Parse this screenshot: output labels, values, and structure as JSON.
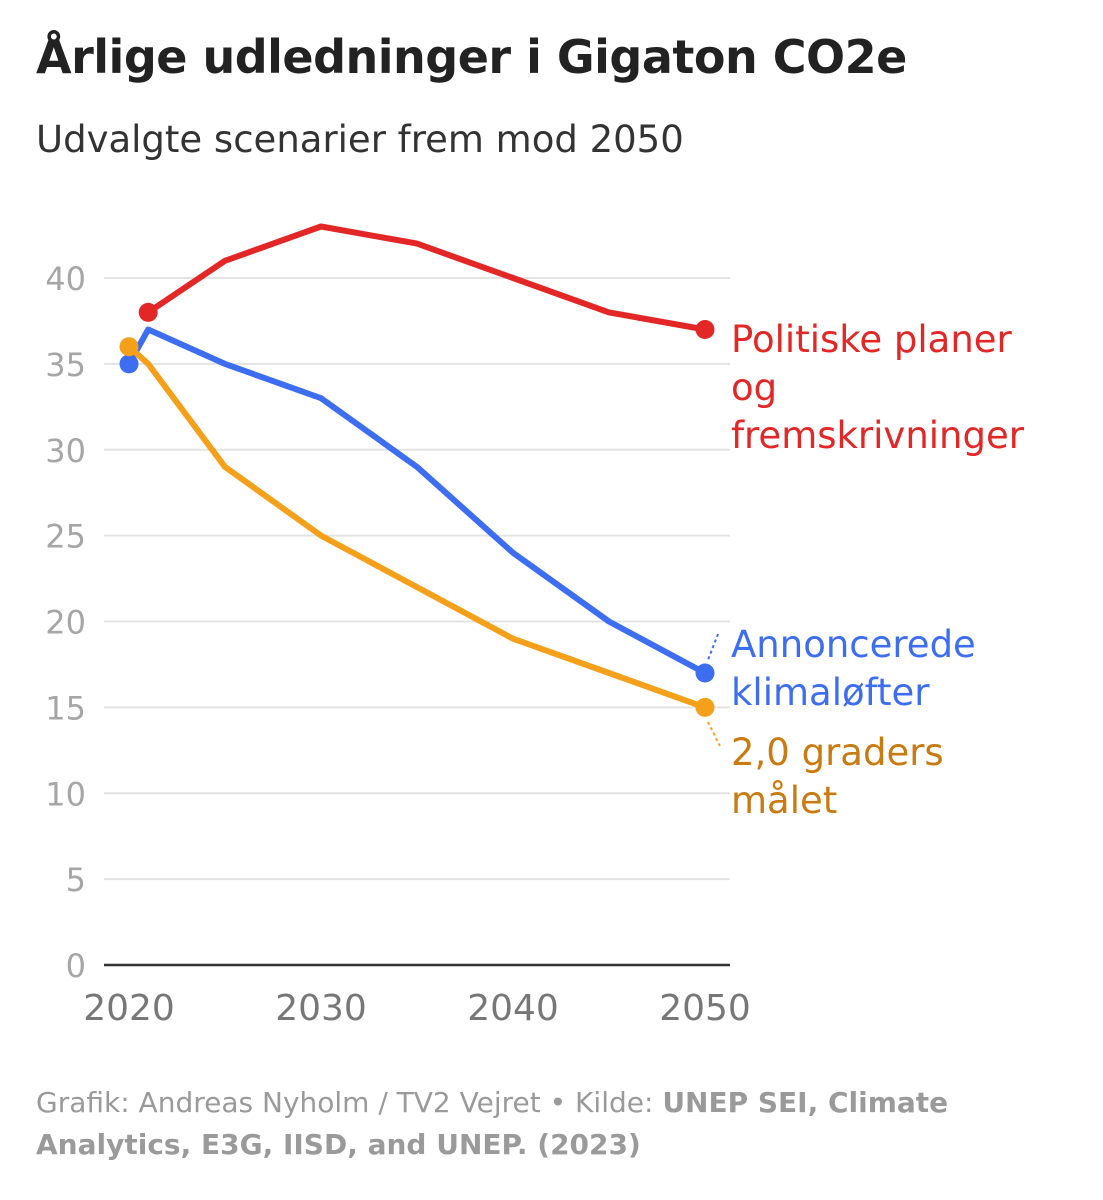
{
  "header": {
    "title": "Årlige udledninger i Gigaton CO2e",
    "subtitle": "Udvalgte scenarier frem mod 2050"
  },
  "footer": {
    "credit": "Grafik: Andreas Nyholm / TV2 Vejret • Kilde: ",
    "source_bold": "UNEP SEI, Climate Analytics, E3G, IISD, and UNEP. (2023)"
  },
  "chart_data": {
    "type": "line",
    "title": "Årlige udledninger i Gigaton CO2e",
    "subtitle": "Udvalgte scenarier frem mod 2050",
    "xlabel": "",
    "ylabel": "",
    "xlim": [
      2020,
      2050
    ],
    "ylim": [
      0,
      42
    ],
    "x_ticks": [
      2020,
      2030,
      2040,
      2050
    ],
    "y_ticks": [
      0,
      5,
      10,
      15,
      20,
      25,
      30,
      35,
      40
    ],
    "grid": true,
    "legend": "inline labels at right end of lines",
    "series": [
      {
        "name_lines": [
          "Politiske planer",
          "og",
          "fremskrivninger"
        ],
        "color": "#e32626",
        "label_color": "#e32626",
        "points": [
          [
            2021,
            38
          ],
          [
            2025,
            41
          ],
          [
            2030,
            43
          ],
          [
            2035,
            42
          ],
          [
            2040,
            40
          ],
          [
            2045,
            38
          ],
          [
            2050,
            37
          ]
        ],
        "marker_start": [
          2021,
          38
        ],
        "marker_end": [
          2050,
          37
        ]
      },
      {
        "name_lines": [
          "Annoncerede",
          "klimaløfter"
        ],
        "color": "#3d6ef2",
        "label_color": "#3d6ef2",
        "points": [
          [
            2020,
            35
          ],
          [
            2021,
            37
          ],
          [
            2025,
            35
          ],
          [
            2030,
            33
          ],
          [
            2035,
            29
          ],
          [
            2040,
            24
          ],
          [
            2045,
            20
          ],
          [
            2050,
            17
          ]
        ],
        "marker_start": [
          2020,
          35
        ],
        "marker_end": [
          2050,
          17
        ]
      },
      {
        "name_lines": [
          "2,0 graders",
          "målet"
        ],
        "color": "#f5a01a",
        "label_color": "#c97a10",
        "points": [
          [
            2020,
            36
          ],
          [
            2021,
            35
          ],
          [
            2025,
            29
          ],
          [
            2030,
            25
          ],
          [
            2035,
            22
          ],
          [
            2040,
            19
          ],
          [
            2045,
            17
          ],
          [
            2050,
            15
          ]
        ],
        "marker_start": [
          2020,
          36
        ],
        "marker_end": [
          2050,
          15
        ]
      }
    ]
  }
}
